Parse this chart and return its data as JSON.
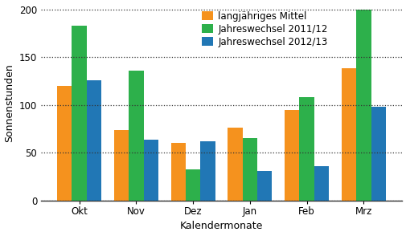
{
  "categories": [
    "Okt",
    "Nov",
    "Dez",
    "Jan",
    "Feb",
    "Mrz"
  ],
  "series": {
    "langjähriges Mittel": [
      120,
      74,
      60,
      76,
      95,
      138
    ],
    "Jahreswechsel 2011/12": [
      183,
      136,
      33,
      65,
      108,
      200
    ],
    "Jahreswechsel 2012/13": [
      126,
      64,
      62,
      31,
      36,
      98
    ]
  },
  "colors": {
    "langjähriges Mittel": "#F5921E",
    "Jahreswechsel 2011/12": "#2DB04B",
    "Jahreswechsel 2012/13": "#2177B5"
  },
  "ylabel": "Sonnenstunden",
  "xlabel": "Kalendermonate",
  "ylim": [
    0,
    205
  ],
  "yticks": [
    0,
    50,
    100,
    150,
    200
  ],
  "ytick_labels": [
    "0",
    "50",
    "100",
    "150",
    "200"
  ],
  "legend_labels": [
    "langjähriges Mittel",
    "Jahreswechsel 2011/12",
    "Jahreswechsel 2012/13"
  ],
  "background_color": "#ffffff",
  "bar_width": 0.26,
  "grid_color": "#333333",
  "figsize": [
    5.06,
    2.94
  ],
  "dpi": 100
}
